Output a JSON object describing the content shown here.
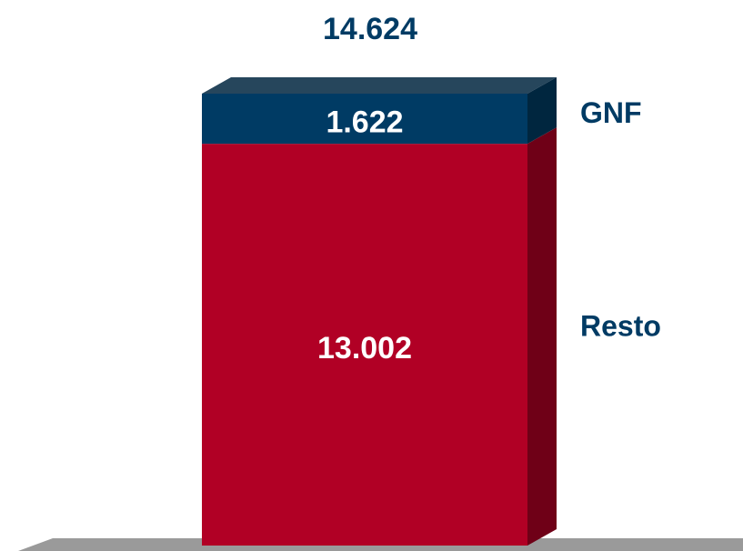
{
  "chart_data": {
    "type": "stacked-bar-3d",
    "total": 14.624,
    "series": [
      {
        "name": "Resto",
        "color": "#b10025",
        "side_color": "#6f0017",
        "values": [
          13.002
        ]
      },
      {
        "name": "GNF",
        "color": "#003b64",
        "side_color": "#00263f",
        "values": [
          1.622
        ]
      }
    ]
  }
}
